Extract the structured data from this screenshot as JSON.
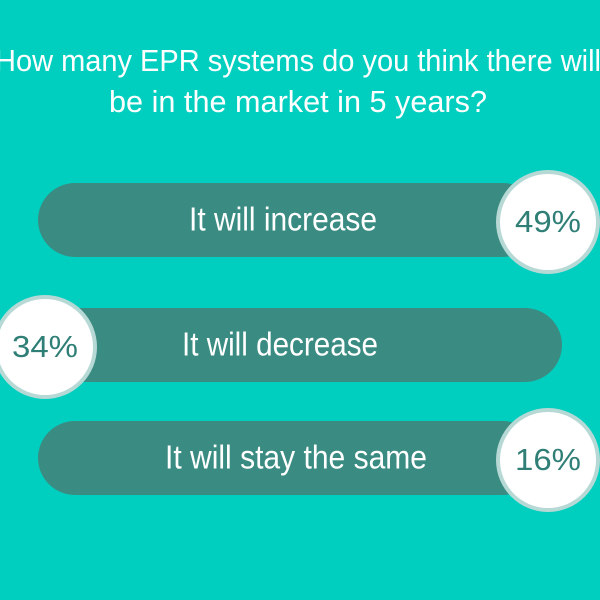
{
  "title": {
    "line1": "How many EPR systems do you think there will",
    "line2": "be in the market in 5 years?"
  },
  "options": [
    {
      "label": "It will increase",
      "percent": "49%"
    },
    {
      "label": "It will decrease",
      "percent": "34%"
    },
    {
      "label": "It will stay the same",
      "percent": "16%"
    }
  ]
}
